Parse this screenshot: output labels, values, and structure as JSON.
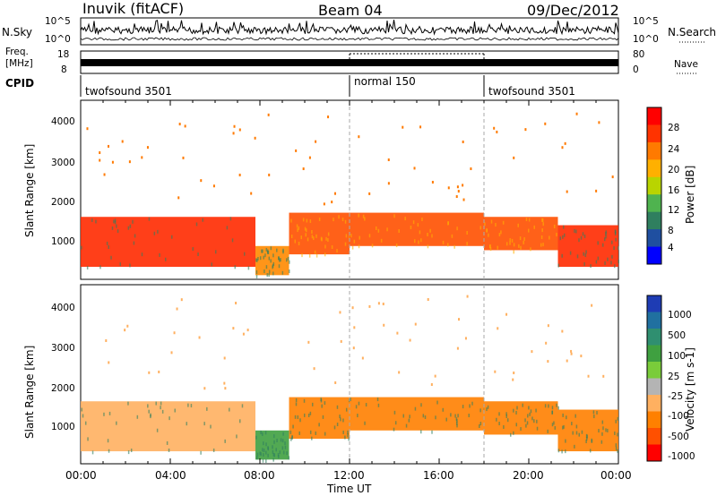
{
  "header": {
    "station": "Inuvik (fitACF)",
    "beam": "Beam 04",
    "date": "09/Dec/2012"
  },
  "top_panels": {
    "nsky_label": "N.Sky",
    "nsky_ticks": [
      "10^5",
      "10^0"
    ],
    "nsearch_label": "N.Search",
    "nsearch_ticks": [
      "10^5",
      "10^0"
    ],
    "freq_label_line1": "Freq.",
    "freq_label_line2": "[MHz]",
    "freq_ticks": [
      "18",
      "8"
    ],
    "nave_label": "Nave",
    "nave_ticks": [
      "80",
      "0"
    ],
    "cpid_label": "CPID",
    "cpid_segments": [
      {
        "name": "twofsound 3501",
        "start_hour": 0,
        "end_hour": 12
      },
      {
        "name": "normal 150",
        "start_hour": 12,
        "end_hour": 18
      },
      {
        "name": "twofsound 3501",
        "start_hour": 18,
        "end_hour": 24
      }
    ]
  },
  "x_axis": {
    "label": "Time UT",
    "ticks": [
      "00:00",
      "04:00",
      "08:00",
      "12:00",
      "16:00",
      "20:00",
      "00:00"
    ]
  },
  "power_panel": {
    "ylabel": "Slant Range [km]",
    "yticks": [
      "1000",
      "2000",
      "3000",
      "4000"
    ],
    "colorbar_label": "Power [dB]",
    "colorbar_ticks": [
      "28",
      "24",
      "20",
      "16",
      "12",
      "8",
      "4"
    ],
    "colorbar_colors": [
      "#ff0000",
      "#ff3300",
      "#ff7a00",
      "#ffb000",
      "#b9d400",
      "#4fb34f",
      "#2f7f5f",
      "#1f4fa0",
      "#0000ff"
    ]
  },
  "velocity_panel": {
    "ylabel": "Slant Range [km]",
    "yticks": [
      "1000",
      "2000",
      "3000",
      "4000"
    ],
    "colorbar_label": "Velocity [m s-1]",
    "colorbar_ticks": [
      "1000",
      "500",
      "100",
      "25",
      "-25",
      "-100",
      "-500",
      "-1000"
    ],
    "colorbar_colors": [
      "#1e3cb4",
      "#2070a0",
      "#2f8f70",
      "#3fa040",
      "#7acc3a",
      "#b4b4b4",
      "#ffb060",
      "#ff8000",
      "#ff5000",
      "#ff0000"
    ]
  },
  "chart_data": [
    {
      "type": "heatmap",
      "title": "Power [dB]",
      "xlabel": "Time UT",
      "ylabel": "Slant Range [km]",
      "xlim": [
        0,
        24
      ],
      "ylim": [
        200,
        4500
      ],
      "clim": [
        0,
        30
      ],
      "echo_bands": [
        {
          "t_start": 0,
          "t_end": 7.8,
          "range_low": 500,
          "range_high": 1700,
          "power": 27
        },
        {
          "t_start": 7.8,
          "t_end": 9.3,
          "range_low": 300,
          "range_high": 1000,
          "power": 20
        },
        {
          "t_start": 9.3,
          "t_end": 12,
          "range_low": 800,
          "range_high": 1800,
          "power": 25
        },
        {
          "t_start": 12,
          "t_end": 18,
          "range_low": 1000,
          "range_high": 1800,
          "power": 22
        },
        {
          "t_start": 18,
          "t_end": 21.3,
          "range_low": 900,
          "range_high": 1700,
          "power": 24
        },
        {
          "t_start": 21.3,
          "t_end": 24,
          "range_low": 500,
          "range_high": 1500,
          "power": 27
        }
      ]
    },
    {
      "type": "heatmap",
      "title": "Velocity [m s-1]",
      "xlabel": "Time UT",
      "ylabel": "Slant Range [km]",
      "xlim": [
        0,
        24
      ],
      "ylim": [
        200,
        4500
      ],
      "clim": [
        -1000,
        1000
      ],
      "echo_bands": [
        {
          "t_start": 0,
          "t_end": 7.8,
          "range_low": 500,
          "range_high": 1700,
          "velocity": -50
        },
        {
          "t_start": 7.8,
          "t_end": 9.3,
          "range_low": 300,
          "range_high": 1000,
          "velocity": 100
        },
        {
          "t_start": 9.3,
          "t_end": 12,
          "range_low": 800,
          "range_high": 1800,
          "velocity": -150
        },
        {
          "t_start": 12,
          "t_end": 18,
          "range_low": 1000,
          "range_high": 1800,
          "velocity": -200
        },
        {
          "t_start": 18,
          "t_end": 21.3,
          "range_low": 900,
          "range_high": 1700,
          "velocity": -200
        },
        {
          "t_start": 21.3,
          "t_end": 24,
          "range_low": 500,
          "range_high": 1500,
          "velocity": -150
        }
      ]
    }
  ]
}
